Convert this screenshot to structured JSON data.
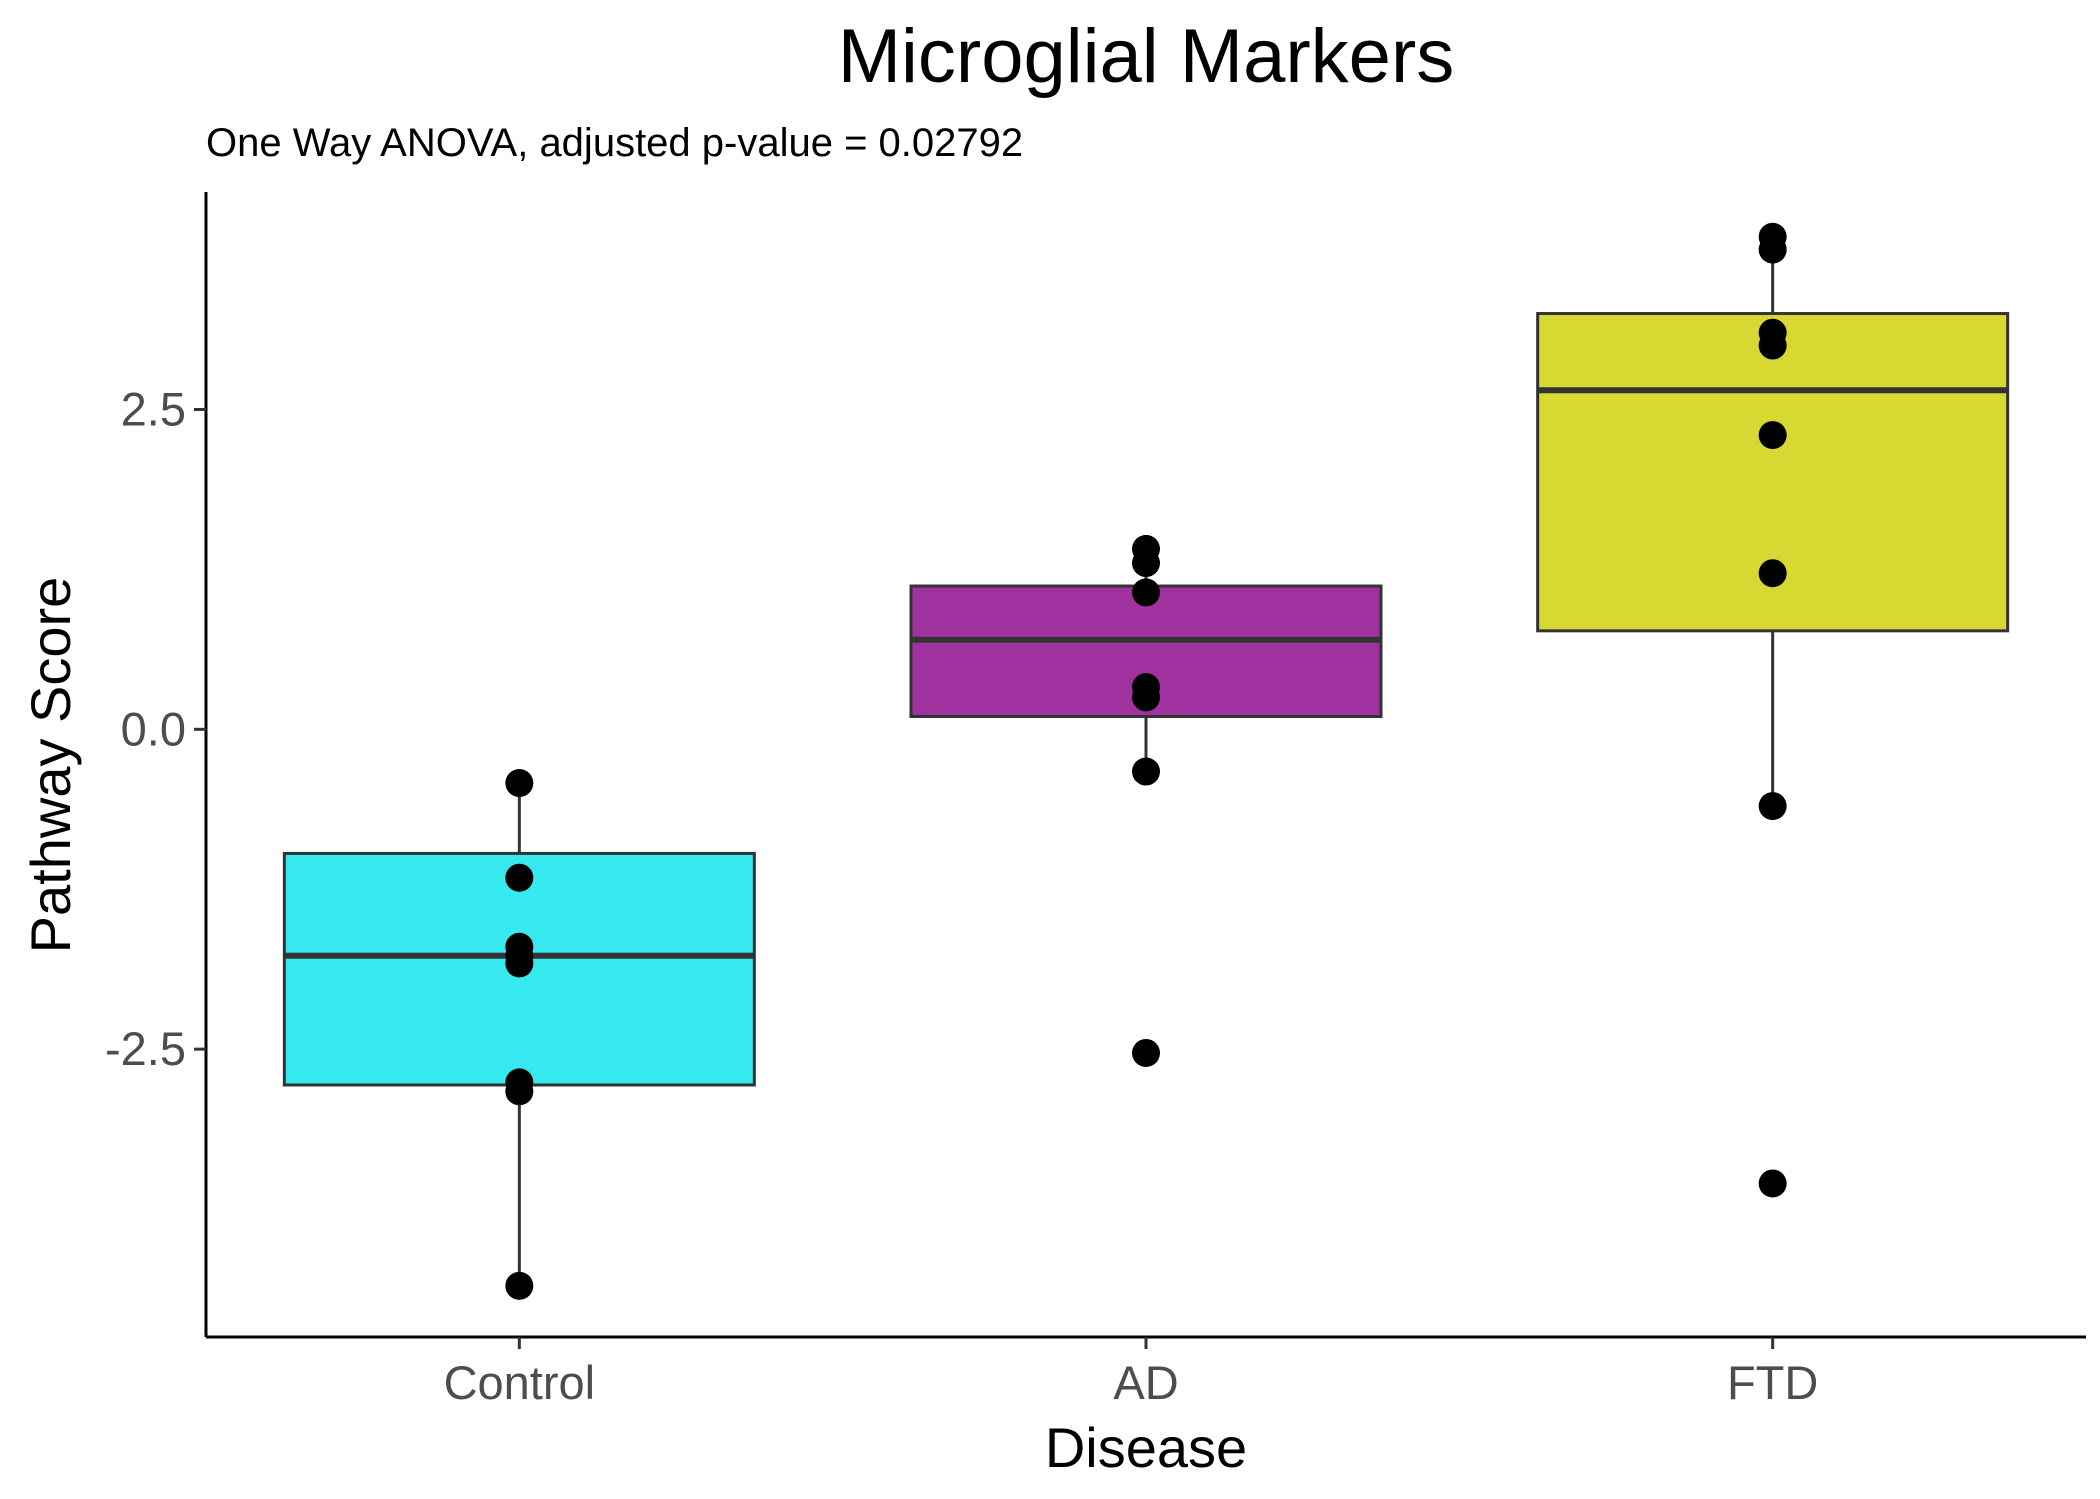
{
  "chart_data": {
    "type": "box",
    "title": "Microglial Markers",
    "subtitle": "One Way ANOVA, adjusted p-value = 0.02792",
    "xlabel": "Disease",
    "ylabel": "Pathway Score",
    "categories": [
      "Control",
      "AD",
      "FTD"
    ],
    "ylim": [
      -4.75,
      4.2
    ],
    "yticks": [
      -2.5,
      0.0,
      2.5
    ],
    "ytick_labels": [
      "-2.5",
      "0.0",
      "2.5"
    ],
    "grid": false,
    "legend": "none",
    "boxes": [
      {
        "category": "Control",
        "fill": "#35E9EF",
        "whisker_low": -4.35,
        "q1": -2.78,
        "median": -1.77,
        "q3": -0.97,
        "whisker_high": -0.42
      },
      {
        "category": "AD",
        "fill": "#A032A0",
        "whisker_low": -0.33,
        "q1": 0.1,
        "median": 0.7,
        "q3": 1.12,
        "whisker_high": 1.41
      },
      {
        "category": "FTD",
        "fill": "#D8D832",
        "whisker_low": -0.6,
        "q1": 0.77,
        "median": 2.65,
        "q3": 3.25,
        "whisker_high": 3.85
      }
    ],
    "points": [
      {
        "category": "Control",
        "values": [
          -0.42,
          -1.16,
          -1.7,
          -1.77,
          -1.83,
          -2.76,
          -2.83,
          -4.35
        ]
      },
      {
        "category": "AD",
        "values": [
          1.41,
          1.3,
          1.07,
          0.33,
          0.25,
          -0.33,
          -2.53
        ]
      },
      {
        "category": "FTD",
        "values": [
          3.85,
          3.75,
          3.1,
          3.0,
          2.3,
          1.22,
          -0.6,
          -3.55
        ]
      }
    ],
    "colors": {
      "outline": "#333333",
      "point": "#000000",
      "axis": "#000000"
    }
  }
}
